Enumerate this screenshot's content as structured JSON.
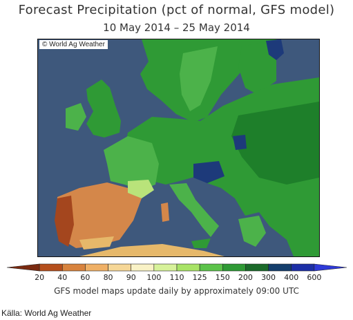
{
  "title": "Forecast Precipitation (pct of normal, GFS model)",
  "date_range": "10 May 2014 – 25 May 2014",
  "credit": "© World Ag Weather",
  "footer": "GFS model maps update daily by approximately 09:00 UTC",
  "source": "Källa: World Ag Weather",
  "colors": {
    "sea": "#3e587c",
    "land_green_light": "#4cb24a",
    "land_green": "#2f9a35",
    "land_green_dark": "#1e7f2a",
    "wet_navy": "#1d3a7a",
    "dry_orange": "#d4874a",
    "dry_brown": "#a4461e",
    "dry_tan": "#e6b86a",
    "yellow_green": "#b9e37a"
  },
  "legend": {
    "ticks": [
      "20",
      "40",
      "60",
      "80",
      "90",
      "100",
      "110",
      "125",
      "150",
      "200",
      "300",
      "400",
      "600"
    ],
    "bins": [
      {
        "color": "#7a2a10"
      },
      {
        "color": "#b54f1c"
      },
      {
        "color": "#d8833e"
      },
      {
        "color": "#efb066"
      },
      {
        "color": "#f6d797"
      },
      {
        "color": "#f9f2c6"
      },
      {
        "color": "#d7f29a"
      },
      {
        "color": "#a8e366"
      },
      {
        "color": "#5cc34a"
      },
      {
        "color": "#2f9a35"
      },
      {
        "color": "#1b6a2a"
      },
      {
        "color": "#143e6c"
      },
      {
        "color": "#1c2fa6"
      },
      {
        "color": "#2e3ad8"
      }
    ]
  }
}
